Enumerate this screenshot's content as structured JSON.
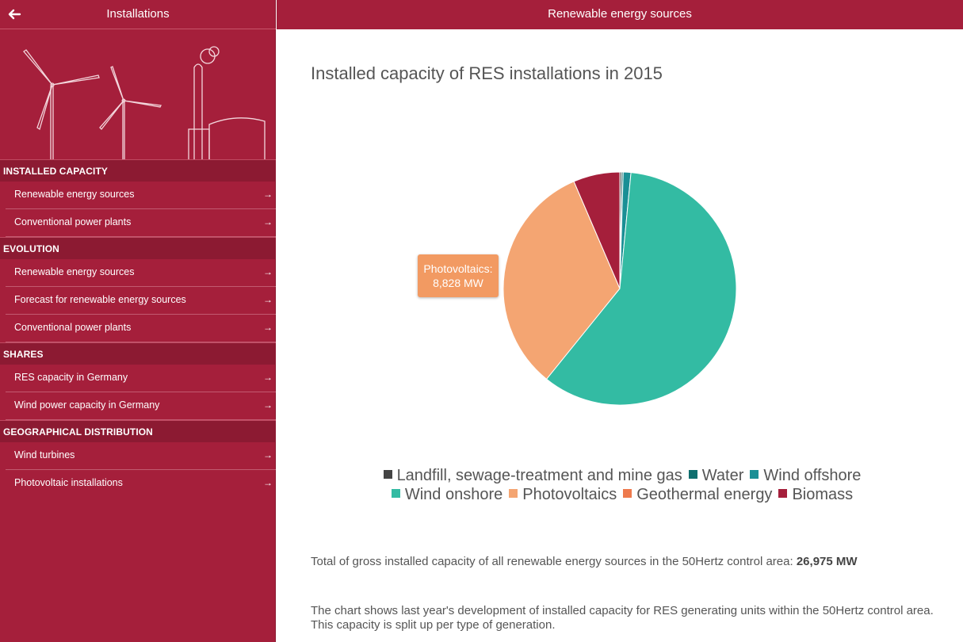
{
  "sidebar": {
    "title": "Installations",
    "back_icon": "arrow-left-icon",
    "sections": [
      {
        "header": "INSTALLED CAPACITY",
        "items": [
          "Renewable energy sources",
          "Conventional power plants"
        ]
      },
      {
        "header": "EVOLUTION",
        "items": [
          "Renewable energy sources",
          "Forecast for renewable energy sources",
          "Conventional power plants"
        ]
      },
      {
        "header": "SHARES",
        "items": [
          "RES capacity in Germany",
          "Wind power capacity in Germany"
        ]
      },
      {
        "header": "GEOGRAPHICAL DISTRIBUTION",
        "items": [
          "Wind turbines",
          "Photovoltaic installations"
        ]
      }
    ],
    "item_arrow": "→"
  },
  "topbar": {
    "title": "Renewable energy sources"
  },
  "colors": {
    "brand": "#a51f3b",
    "brand_dark": "#8c1a32"
  },
  "chart_data": {
    "type": "pie",
    "title": "Installed capacity of RES installations in 2015",
    "series": [
      {
        "name": "Landfill, sewage-treatment and mine gas",
        "value": 65,
        "color": "#444444"
      },
      {
        "name": "Water",
        "value": 60,
        "color": "#0f6e6e"
      },
      {
        "name": "Wind offshore",
        "value": 288,
        "color": "#1a8f95"
      },
      {
        "name": "Wind onshore",
        "value": 15995,
        "color": "#33bba3"
      },
      {
        "name": "Photovoltaics",
        "value": 8828,
        "color": "#f4a572"
      },
      {
        "name": "Geothermal energy",
        "value": 0,
        "color": "#ee7a4d"
      },
      {
        "name": "Biomass",
        "value": 1739,
        "color": "#a51f3b"
      }
    ],
    "legend": "bottom",
    "tooltip": {
      "line1": "Photovoltaics:",
      "line2": "8,828 MW"
    }
  },
  "summary": {
    "total_label": "Total of gross installed capacity of all renewable energy sources in the 50Hertz control area:",
    "total_value": "26,975 MW",
    "description_line1": "The chart shows last year's development of installed capacity for RES generating units within the 50Hertz control area.",
    "description_line2": "This capacity is split up per type of generation."
  }
}
